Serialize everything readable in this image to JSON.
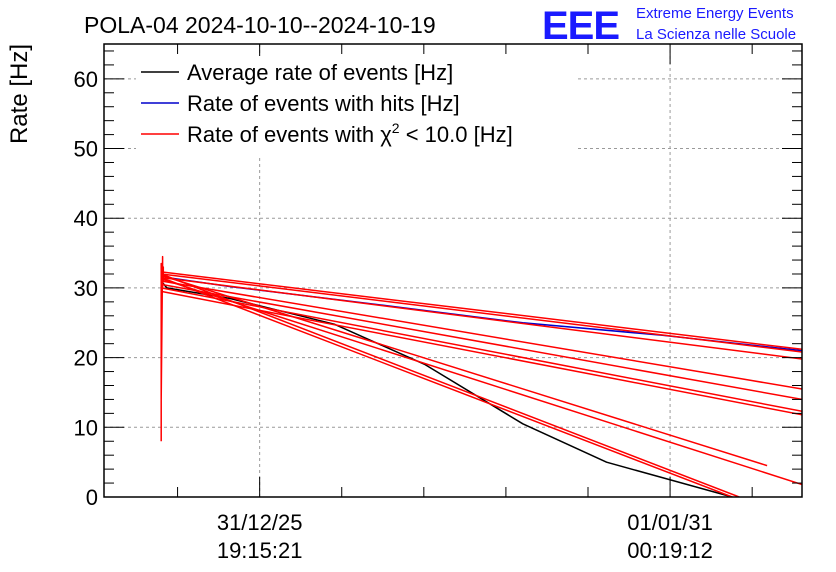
{
  "chart_data": {
    "type": "line",
    "title": "POLA-04 2024-10-10--2024-10-19",
    "ylabel": "Rate [Hz]",
    "xlabel": "",
    "ylim": [
      0,
      65
    ],
    "yticks": [
      0,
      10,
      20,
      30,
      40,
      50,
      60
    ],
    "xlim": [
      0,
      100
    ],
    "x_ticks": [
      {
        "x": 22.3,
        "line1": "31/12/25",
        "line2": "19:15:21"
      },
      {
        "x": 81.1,
        "line1": "01/01/31",
        "line2": "00:19:12"
      }
    ],
    "grid": true,
    "legend_position": "top-left",
    "legend": [
      {
        "label": "Average rate of events [Hz]",
        "color": "#000000"
      },
      {
        "label": "Rate of events with hits [Hz]",
        "color": "#0000cc"
      },
      {
        "label_prefix": "Rate of events with ",
        "label_symbol": "χ",
        "label_sup": "2",
        "label_suffix": " < 10.0 [Hz]",
        "color": "#ff0000"
      }
    ],
    "series": [
      {
        "name": "Average rate of events [Hz]",
        "color": "#000000",
        "x": [
          8.2,
          9.0,
          18.0,
          33.0,
          46.0,
          60.0,
          72.0,
          90.0
        ],
        "y": [
          31.0,
          30.0,
          28.5,
          24.8,
          19.0,
          10.5,
          5.0,
          0.0
        ]
      },
      {
        "name": "Rate of events with hits [Hz]",
        "color": "#0000cc",
        "x": [
          8.2,
          9.0,
          18.0,
          40.0,
          60.0,
          80.0,
          100.0
        ],
        "y": [
          32.0,
          31.5,
          30.2,
          27.5,
          25.0,
          23.2,
          21.0
        ]
      },
      {
        "name": "Rate of events with χ2 < 10.0 [Hz]",
        "color": "#ff0000",
        "segments": [
          {
            "x": [
              8.2,
              100.0
            ],
            "y": [
              32.3,
              21.2
            ]
          },
          {
            "x": [
              8.2,
              100.0
            ],
            "y": [
              32.0,
              20.8
            ]
          },
          {
            "x": [
              8.2,
              100.0
            ],
            "y": [
              31.5,
              19.8
            ]
          },
          {
            "x": [
              8.2,
              100.0
            ],
            "y": [
              31.0,
              15.5
            ]
          },
          {
            "x": [
              8.2,
              100.0
            ],
            "y": [
              30.5,
              14.0
            ]
          },
          {
            "x": [
              8.2,
              100.0
            ],
            "y": [
              30.0,
              12.3
            ]
          },
          {
            "x": [
              8.2,
              100.0
            ],
            "y": [
              29.5,
              11.8
            ]
          },
          {
            "x": [
              8.2,
              100.0
            ],
            "y": [
              31.3,
              1.8
            ]
          },
          {
            "x": [
              8.2,
              95.0
            ],
            "y": [
              31.8,
              4.5
            ]
          },
          {
            "x": [
              8.2,
              91.0
            ],
            "y": [
              32.0,
              0.0
            ]
          },
          {
            "x": [
              8.2,
              90.0
            ],
            "y": [
              31.5,
              0.0
            ]
          },
          {
            "x": [
              8.2,
              8.2,
              8.2,
              8.4,
              8.4,
              8.5,
              8.5
            ],
            "y": [
              8.0,
              33.5,
              14.0,
              34.5,
              30.0,
              33.0,
              31.0
            ]
          }
        ]
      }
    ]
  },
  "logo": {
    "text": "EEE",
    "line1": "Extreme Energy Events",
    "line2": "La Scienza nelle Scuole"
  }
}
